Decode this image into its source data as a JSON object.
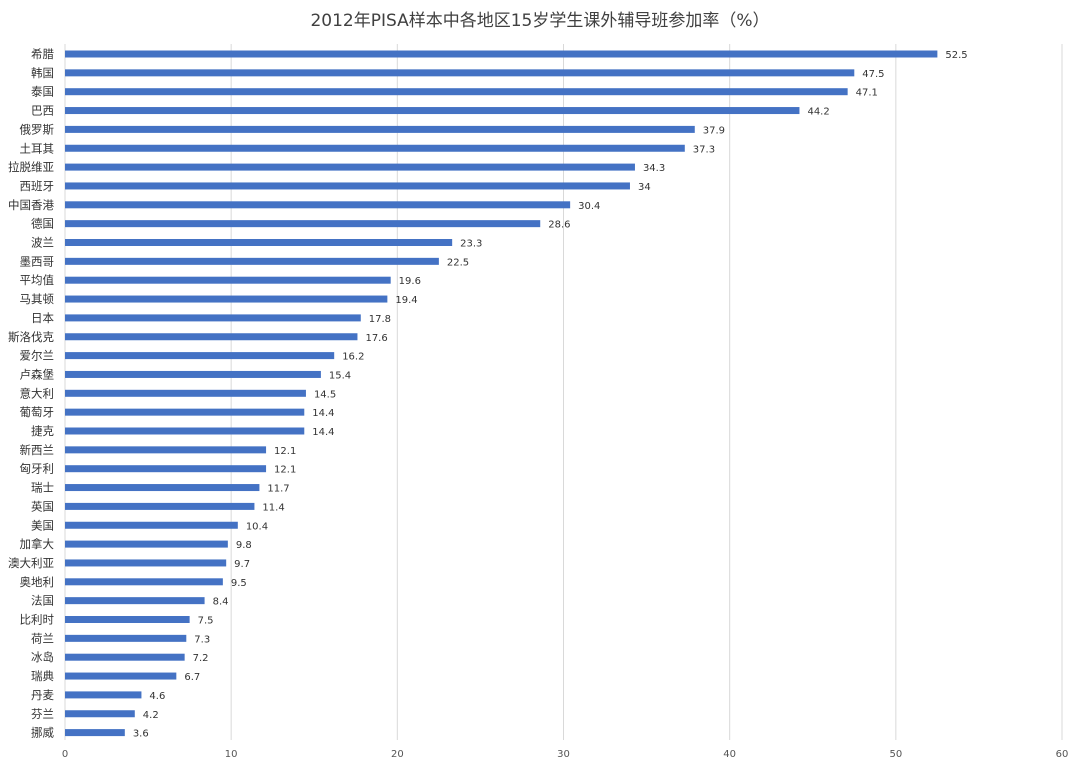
{
  "chart_data": {
    "type": "bar",
    "orientation": "horizontal",
    "title": "2012年PISA样本中各地区15岁学生课外辅导班参加率（%）",
    "categories": [
      "希腊",
      "韩国",
      "泰国",
      "巴西",
      "俄罗斯",
      "土耳其",
      "拉脱维亚",
      "西班牙",
      "中国香港",
      "德国",
      "波兰",
      "墨西哥",
      "平均值",
      "马其顿",
      "日本",
      "斯洛伐克",
      "爱尔兰",
      "卢森堡",
      "意大利",
      "葡萄牙",
      "捷克",
      "新西兰",
      "匈牙利",
      "瑞士",
      "英国",
      "美国",
      "加拿大",
      "澳大利亚",
      "奥地利",
      "法国",
      "比利时",
      "荷兰",
      "冰岛",
      "瑞典",
      "丹麦",
      "芬兰",
      "挪威"
    ],
    "values": [
      52.5,
      47.5,
      47.1,
      44.2,
      37.9,
      37.3,
      34.3,
      34,
      30.4,
      28.6,
      23.3,
      22.5,
      19.6,
      19.4,
      17.8,
      17.6,
      16.2,
      15.4,
      14.5,
      14.4,
      14.4,
      12.1,
      12.1,
      11.7,
      11.4,
      10.4,
      9.8,
      9.7,
      9.5,
      8.4,
      7.5,
      7.3,
      7.2,
      6.7,
      4.6,
      4.2,
      3.6
    ],
    "value_labels": [
      "52.5",
      "47.5",
      "47.1",
      "44.2",
      "37.9",
      "37.3",
      "34.3",
      "34",
      "30.4",
      "28.6",
      "23.3",
      "22.5",
      "19.6",
      "19.4",
      "17.8",
      "17.6",
      "16.2",
      "15.4",
      "14.5",
      "14.4",
      "14.4",
      "12.1",
      "12.1",
      "11.7",
      "11.4",
      "10.4",
      "9.8",
      "9.7",
      "9.5",
      "8.4",
      "7.5",
      "7.3",
      "7.2",
      "6.7",
      "4.6",
      "4.2",
      "3.6"
    ],
    "xlim": [
      0,
      60
    ],
    "xticks": [
      "0",
      "10",
      "20",
      "30",
      "40",
      "50",
      "60"
    ],
    "grid": "vertical",
    "legend": "none",
    "bar_color": "#4472c4"
  }
}
